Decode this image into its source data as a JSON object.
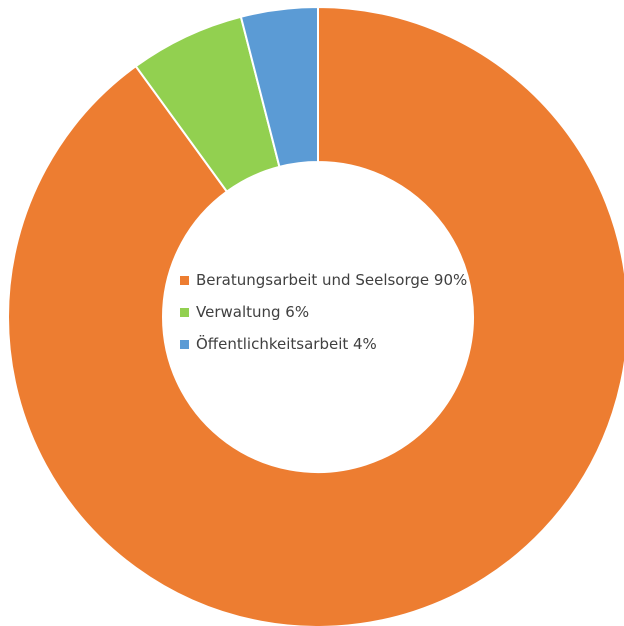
{
  "chart_data": {
    "type": "pie",
    "variant": "donut",
    "title": "",
    "legend_position": "center",
    "slices": [
      {
        "label": "Beratungsarbeit und Seelsorge",
        "value": 90,
        "display": "Beratungsarbeit und Seelsorge 90%",
        "color": "#ED7D31"
      },
      {
        "label": "Verwaltung",
        "value": 6,
        "display": "Verwaltung 6%",
        "color": "#92D050"
      },
      {
        "label": "Öffentlichkeitsarbeit",
        "value": 4,
        "display": "Öffentlichkeitsarbeit 4%",
        "color": "#5B9BD5"
      }
    ]
  }
}
